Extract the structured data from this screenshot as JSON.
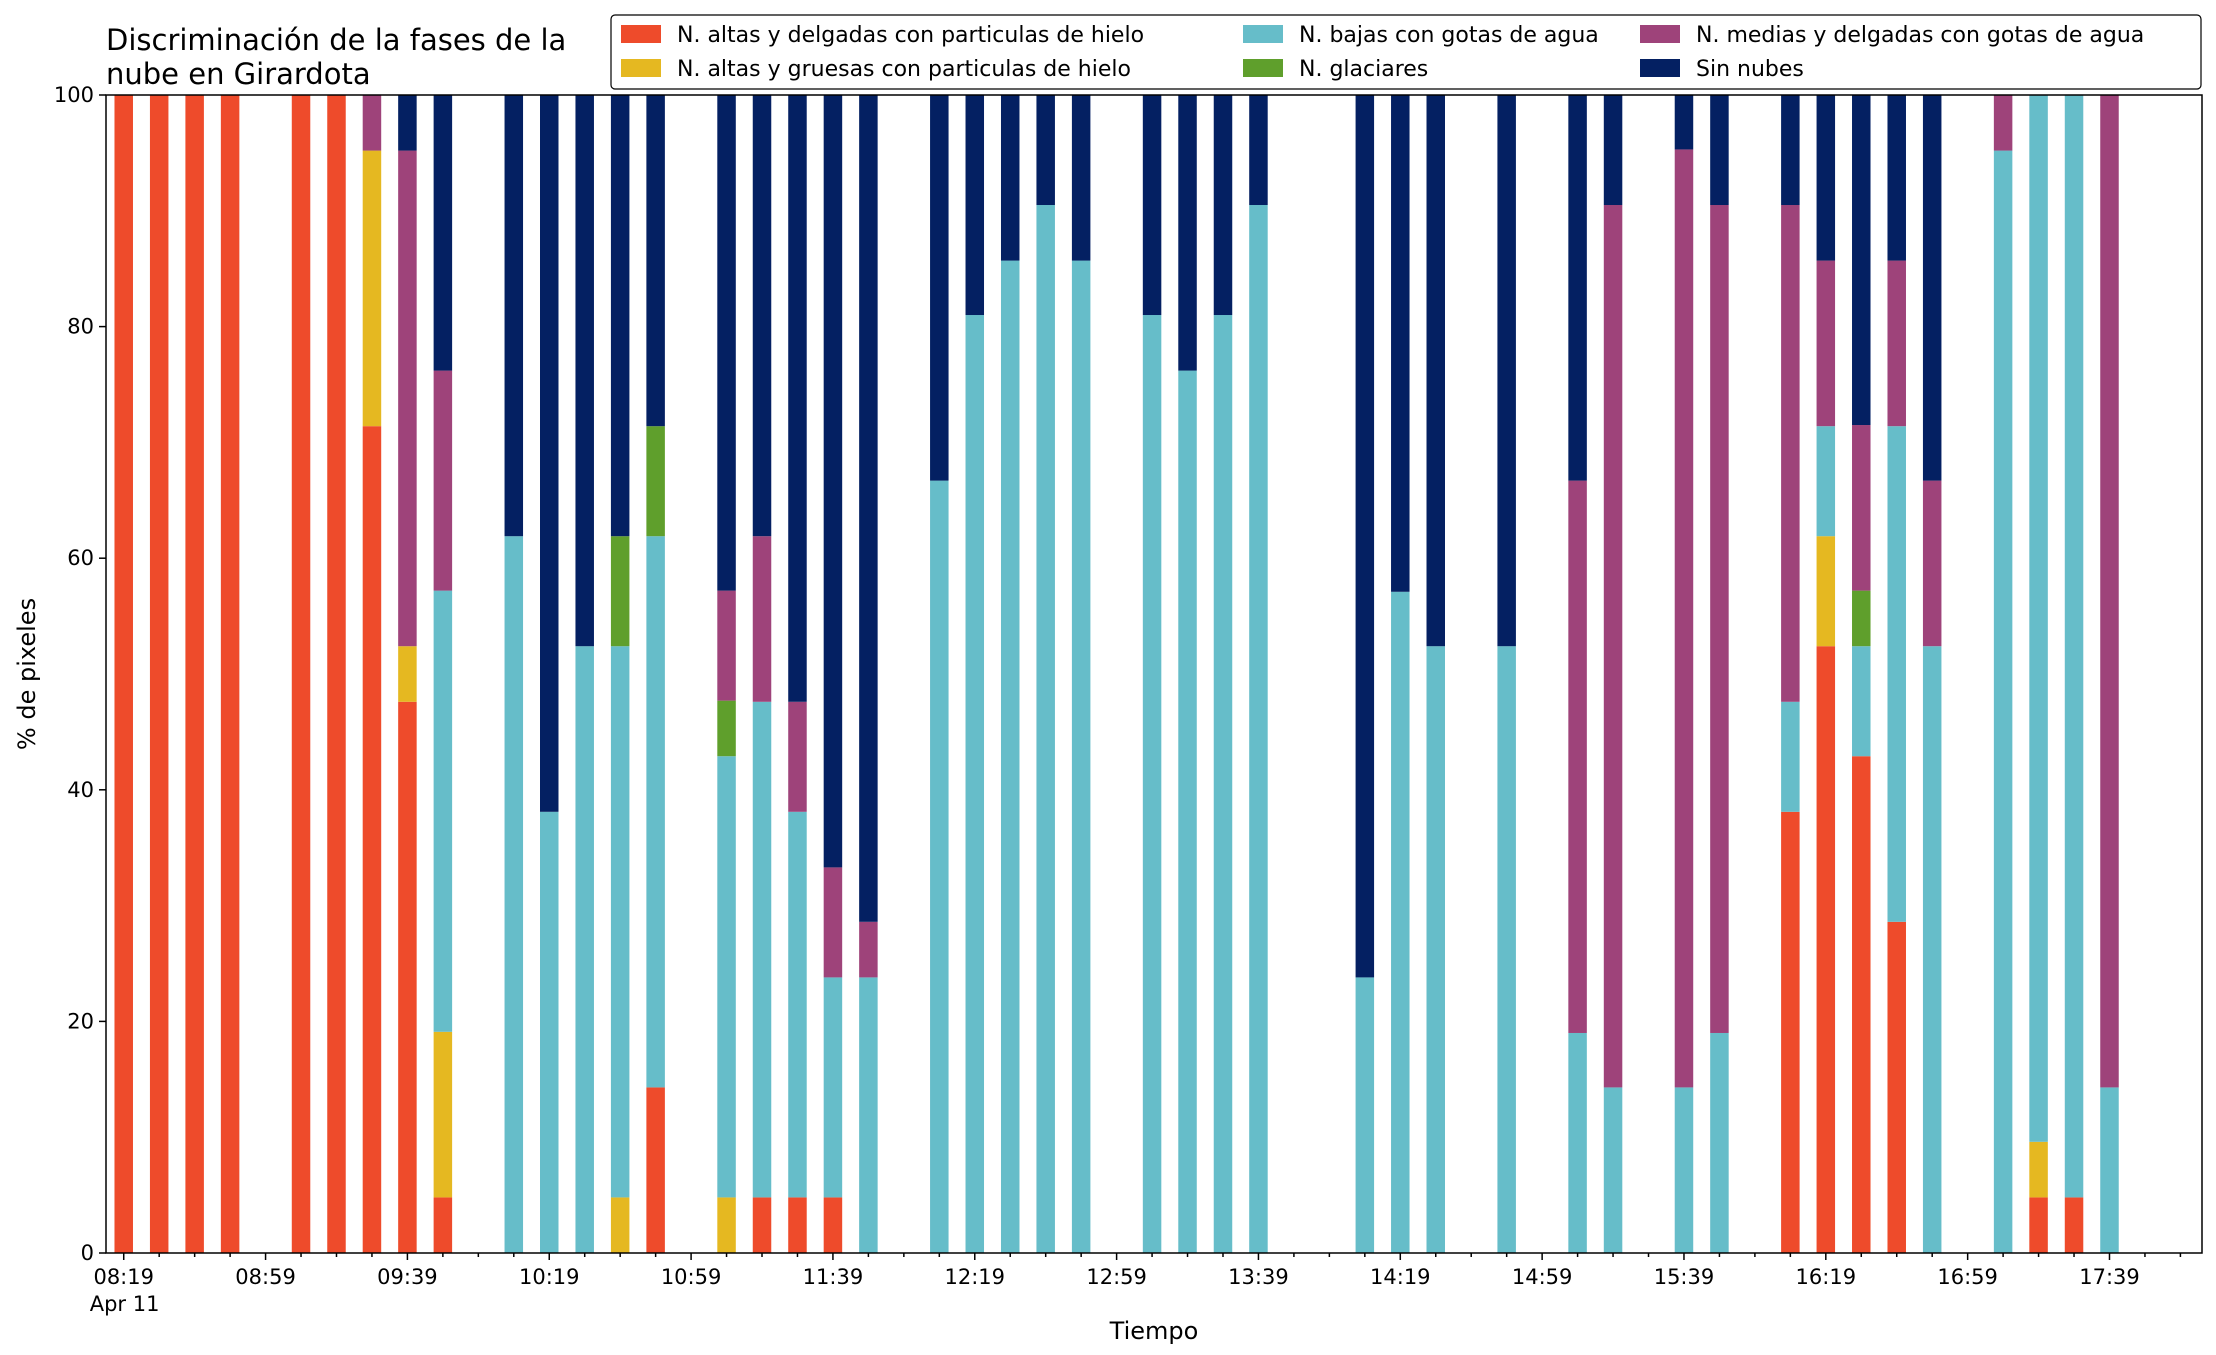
{
  "chart_data": {
    "type": "bar",
    "stacked": true,
    "title_lines": [
      "Discriminación de la fases de la",
      "nube en Girardota"
    ],
    "xlabel": "Tiempo",
    "ylabel": "% de pixeles",
    "ylim": [
      0,
      100
    ],
    "y_ticks": [
      0,
      20,
      40,
      60,
      80,
      100
    ],
    "grid": false,
    "legend_position": "top-right",
    "x_ticks": [
      "08:19",
      "08:59",
      "09:39",
      "10:19",
      "10:59",
      "11:39",
      "12:19",
      "12:59",
      "13:39",
      "14:19",
      "14:59",
      "15:39",
      "16:19",
      "16:59",
      "17:39"
    ],
    "x_tick_sublabel": "Apr 11",
    "x_start": "08:19",
    "time_step_minutes": 10,
    "series": [
      {
        "name": "N. altas y delgadas con particulas de hielo",
        "color": "#ee4b2b"
      },
      {
        "name": "N. altas y gruesas con particulas de hielo",
        "color": "#e5b821"
      },
      {
        "name": "N. bajas con gotas de agua",
        "color": "#66bdc9"
      },
      {
        "name": "N. glaciares",
        "color": "#5f9f2c"
      },
      {
        "name": "N. medias y delgadas con gotas de agua",
        "color": "#9e437a"
      },
      {
        "name": "Sin nubes",
        "color": "#042062"
      }
    ],
    "bars": [
      {
        "time": "08:19",
        "values": [
          100,
          0,
          0,
          0,
          0,
          0
        ]
      },
      {
        "time": "08:29",
        "values": [
          100,
          0,
          0,
          0,
          0,
          0
        ]
      },
      {
        "time": "08:39",
        "values": [
          100,
          0,
          0,
          0,
          0,
          0
        ]
      },
      {
        "time": "08:49",
        "values": [
          100,
          0,
          0,
          0,
          0,
          0
        ]
      },
      {
        "time": "09:09",
        "values": [
          100,
          0,
          0,
          0,
          0,
          0
        ]
      },
      {
        "time": "09:19",
        "values": [
          100,
          0,
          0,
          0,
          0,
          0
        ]
      },
      {
        "time": "09:29",
        "values": [
          71.4,
          23.8,
          0,
          0,
          4.8,
          0
        ]
      },
      {
        "time": "09:39",
        "values": [
          47.6,
          4.8,
          0,
          0,
          42.8,
          4.8
        ]
      },
      {
        "time": "09:49",
        "values": [
          4.8,
          14.3,
          38.1,
          0,
          19.0,
          23.8
        ]
      },
      {
        "time": "10:09",
        "values": [
          0,
          0,
          61.9,
          0,
          0,
          38.1
        ]
      },
      {
        "time": "10:19",
        "values": [
          0,
          0,
          38.1,
          0,
          0,
          61.9
        ]
      },
      {
        "time": "10:29",
        "values": [
          0,
          0,
          52.4,
          0,
          0,
          47.6
        ]
      },
      {
        "time": "10:39",
        "values": [
          0,
          4.8,
          47.6,
          9.5,
          0,
          38.1
        ]
      },
      {
        "time": "10:49",
        "values": [
          14.3,
          0,
          47.6,
          9.5,
          0,
          28.6
        ]
      },
      {
        "time": "11:09",
        "values": [
          0,
          4.8,
          38.1,
          4.8,
          9.5,
          42.8
        ]
      },
      {
        "time": "11:19",
        "values": [
          4.8,
          0,
          42.8,
          0,
          14.3,
          38.1
        ]
      },
      {
        "time": "11:29",
        "values": [
          4.8,
          0,
          33.3,
          0,
          9.5,
          52.4
        ]
      },
      {
        "time": "11:39",
        "values": [
          4.8,
          0,
          19.0,
          0,
          9.5,
          66.7
        ]
      },
      {
        "time": "11:49",
        "values": [
          0,
          0,
          23.8,
          0,
          4.8,
          71.4
        ]
      },
      {
        "time": "12:09",
        "values": [
          0,
          0,
          66.7,
          0,
          0,
          33.3
        ]
      },
      {
        "time": "12:19",
        "values": [
          0,
          0,
          81.0,
          0,
          0,
          19.0
        ]
      },
      {
        "time": "12:29",
        "values": [
          0,
          0,
          85.7,
          0,
          0,
          14.3
        ]
      },
      {
        "time": "12:39",
        "values": [
          0,
          0,
          90.5,
          0,
          0,
          9.5
        ]
      },
      {
        "time": "12:49",
        "values": [
          0,
          0,
          85.7,
          0,
          0,
          14.3
        ]
      },
      {
        "time": "13:09",
        "values": [
          0,
          0,
          81.0,
          0,
          0,
          19.0
        ]
      },
      {
        "time": "13:19",
        "values": [
          0,
          0,
          76.2,
          0,
          0,
          23.8
        ]
      },
      {
        "time": "13:29",
        "values": [
          0,
          0,
          81.0,
          0,
          0,
          19.0
        ]
      },
      {
        "time": "13:39",
        "values": [
          0,
          0,
          90.5,
          0,
          0,
          9.5
        ]
      },
      {
        "time": "14:09",
        "values": [
          0,
          0,
          23.8,
          0,
          0,
          76.2
        ]
      },
      {
        "time": "14:19",
        "values": [
          0,
          0,
          57.1,
          0,
          0,
          42.9
        ]
      },
      {
        "time": "14:29",
        "values": [
          0,
          0,
          52.4,
          0,
          0,
          47.6
        ]
      },
      {
        "time": "14:49",
        "values": [
          0,
          0,
          52.4,
          0,
          0,
          47.6
        ]
      },
      {
        "time": "15:09",
        "values": [
          0,
          0,
          19.0,
          0,
          47.7,
          33.3
        ]
      },
      {
        "time": "15:19",
        "values": [
          0,
          0,
          14.3,
          0,
          76.2,
          9.5
        ]
      },
      {
        "time": "15:39",
        "values": [
          0,
          0,
          14.3,
          0,
          81.0,
          4.7
        ]
      },
      {
        "time": "15:49",
        "values": [
          0,
          0,
          19.0,
          0,
          71.5,
          9.5
        ]
      },
      {
        "time": "16:09",
        "values": [
          38.1,
          0,
          9.5,
          0,
          42.9,
          9.5
        ]
      },
      {
        "time": "16:19",
        "values": [
          52.4,
          9.5,
          9.5,
          0,
          14.3,
          14.3
        ]
      },
      {
        "time": "16:29",
        "values": [
          42.9,
          0,
          9.5,
          4.8,
          14.3,
          28.5
        ]
      },
      {
        "time": "16:39",
        "values": [
          28.6,
          0,
          42.8,
          0,
          14.3,
          14.3
        ]
      },
      {
        "time": "16:49",
        "values": [
          0,
          0,
          52.4,
          0,
          14.3,
          33.3
        ]
      },
      {
        "time": "17:09",
        "values": [
          0,
          0,
          95.2,
          0,
          4.8,
          0
        ]
      },
      {
        "time": "17:19",
        "values": [
          4.8,
          4.8,
          90.4,
          0,
          0,
          0
        ]
      },
      {
        "time": "17:29",
        "values": [
          4.8,
          0,
          95.2,
          0,
          0,
          0
        ]
      },
      {
        "time": "17:39",
        "values": [
          0,
          0,
          14.3,
          0,
          85.7,
          0
        ]
      }
    ]
  }
}
